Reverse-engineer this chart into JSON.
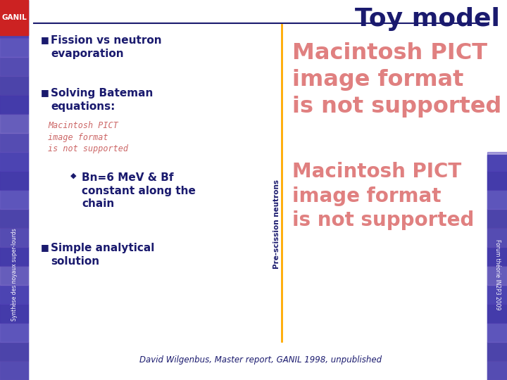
{
  "title": "Toy model",
  "title_color": "#1a1a6e",
  "title_fontsize": 26,
  "background_color": "#ffffff",
  "bullet1_text": "Fission vs neutron\nevaporation",
  "bullet2_text": "Solving Bateman\nequations:",
  "bullet3_diamond": "Bn=6 MeV & Bf\nconstant along the\nchain",
  "bullet4_text": "Simple analytical\nsolution",
  "pict_placeholder_text1": "Macintosh PICT\nimage format\nis not supported",
  "pict_placeholder_text2": "Macintosh PICT\nimage format\nis not supported",
  "left_pict_text": "Macintosh PICT\nimage format\nis not supported",
  "rotated_label": "Pre-scission neutrons",
  "footer_text": "David Wilgenbus, Master report, GANIL 1998, unpublished",
  "right_footer": "Forum théorie IN2P3 2009",
  "left_sidebar_text": "Synthèse des noyaux super-lourds",
  "bullet_color": "#1a1a6e",
  "orange_line_color": "#ffaa00",
  "pict_color": "#e08080",
  "left_pict_color": "#cc6666",
  "sidebar_color": "#4444aa",
  "line_color": "#1a1a6e",
  "ganil_color": "#cc2222"
}
